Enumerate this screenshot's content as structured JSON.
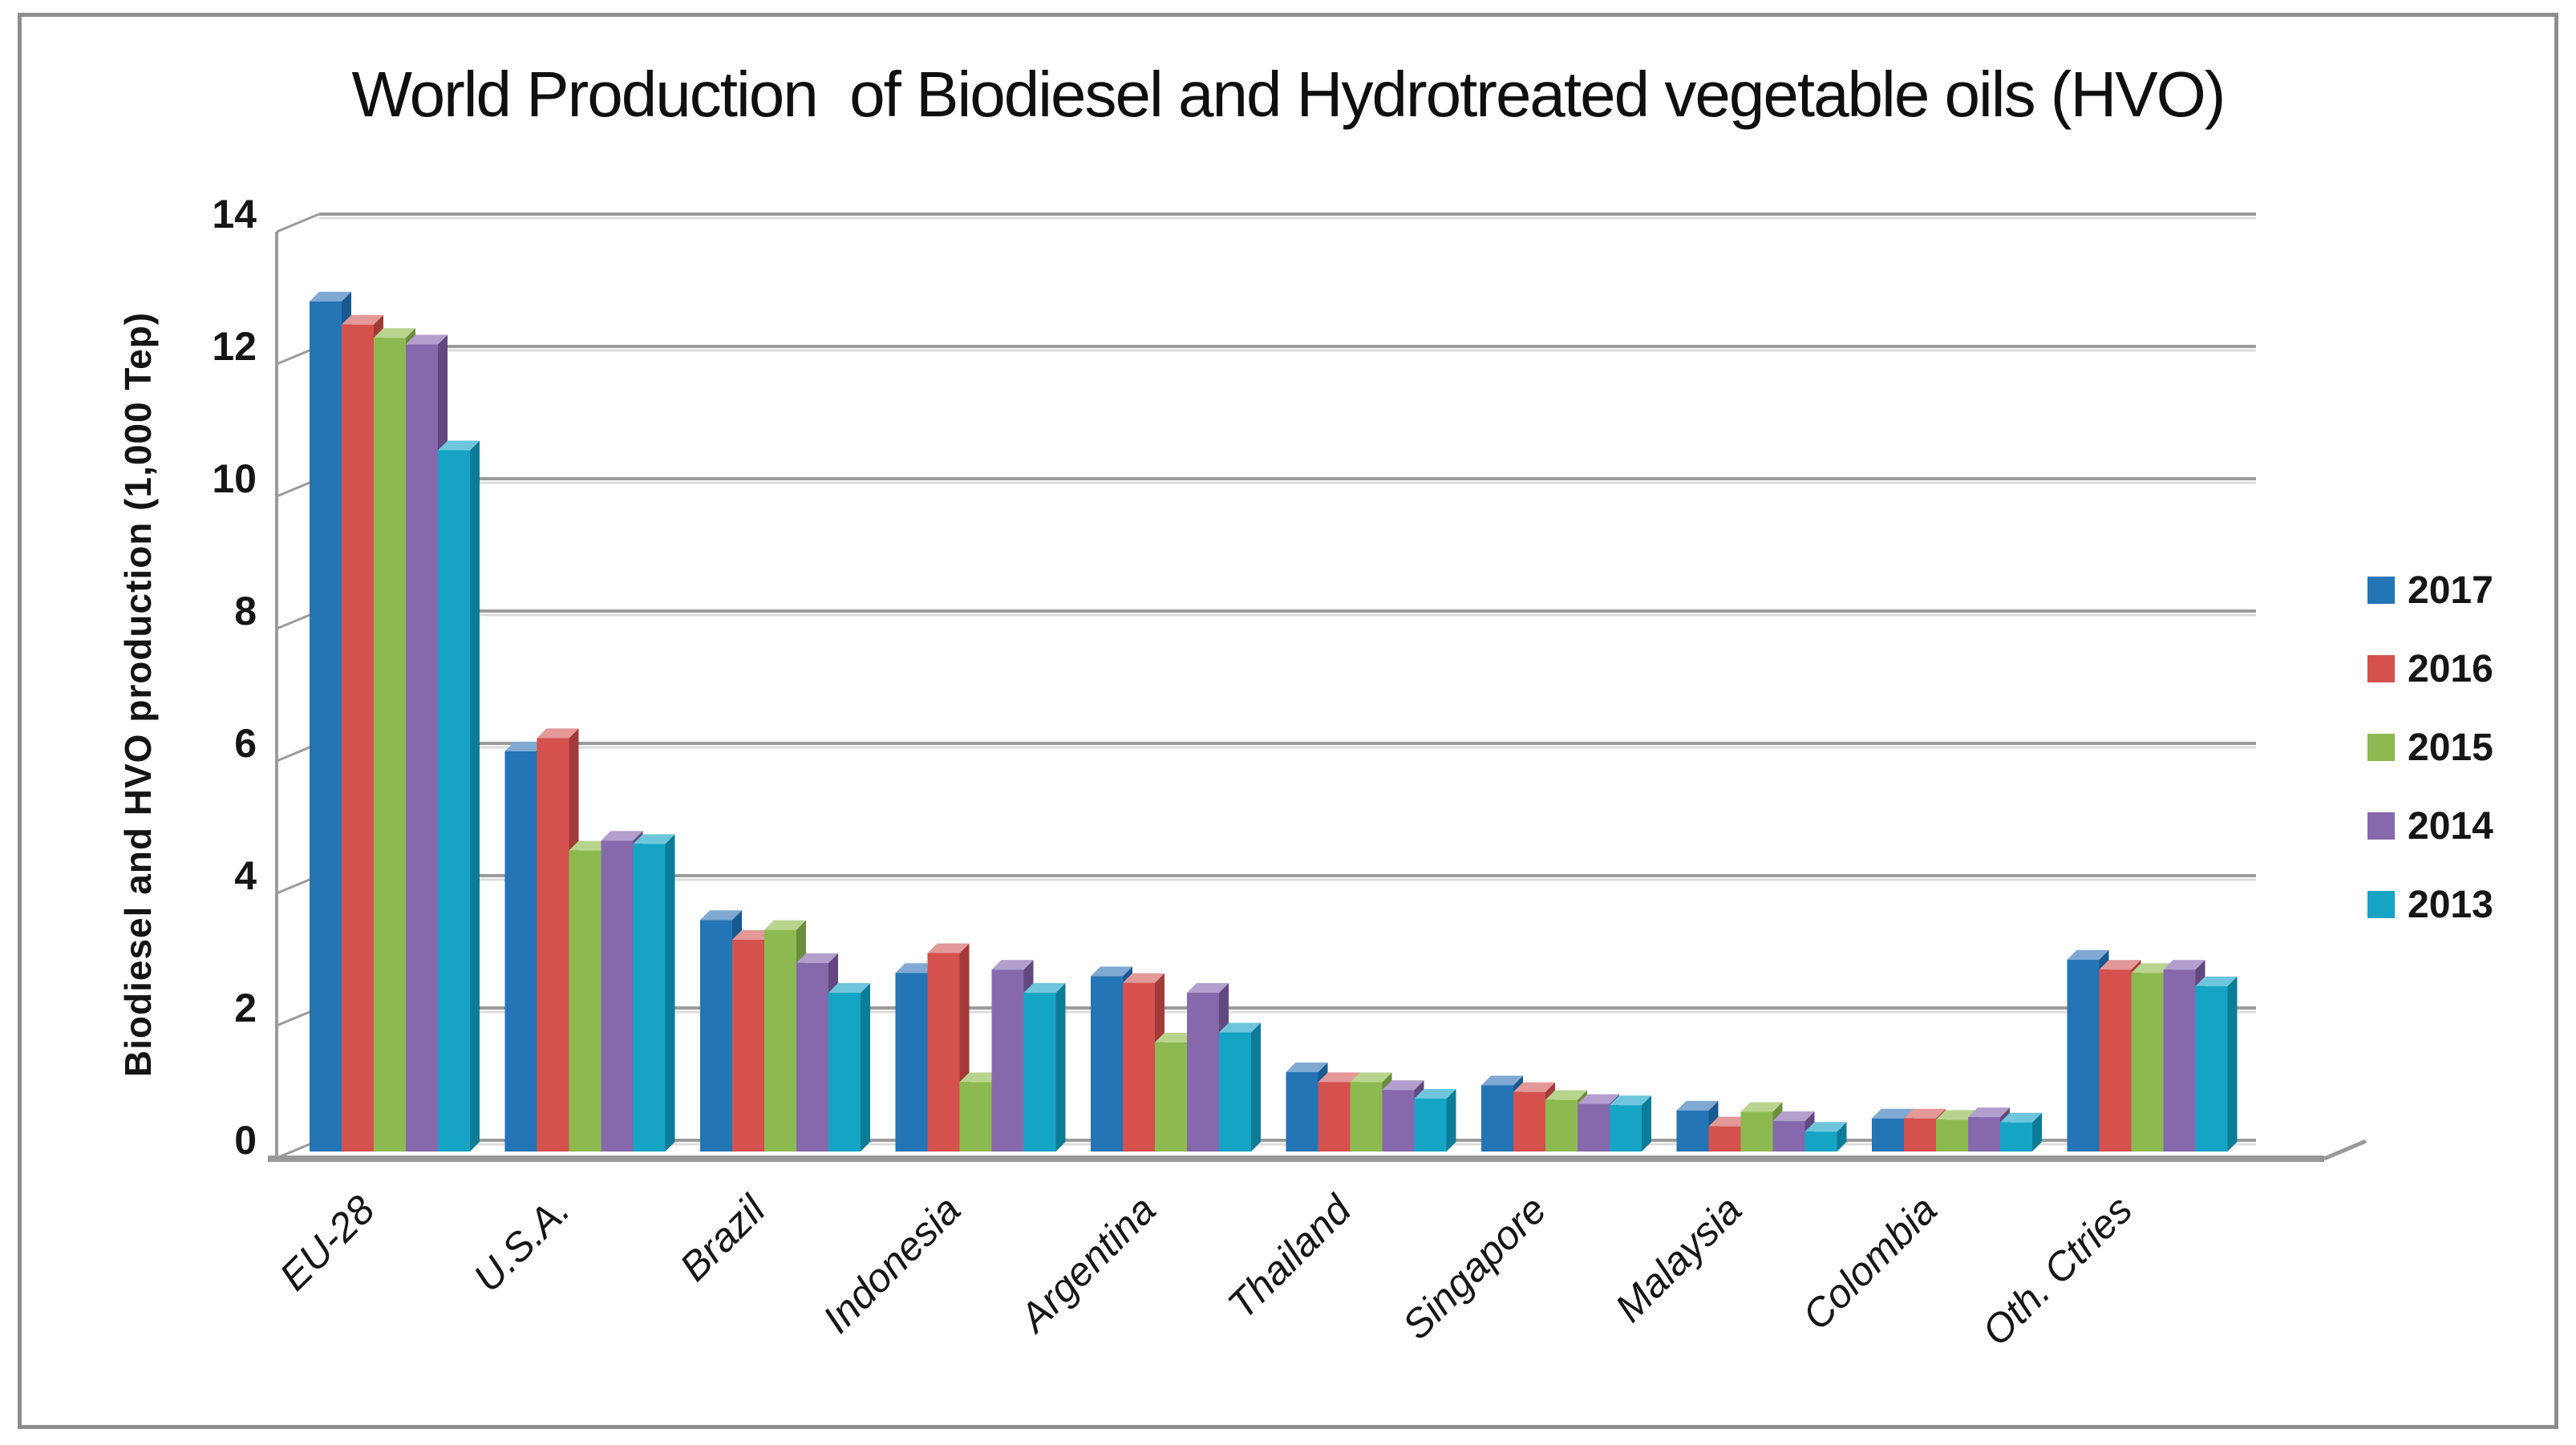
{
  "title": "World Production  of Biodiesel and Hydrotreated vegetable oils (HVO)",
  "y_axis": {
    "label": "Biodiesel and HVO production (1,000 Tep)",
    "tick_values": [
      0,
      2,
      4,
      6,
      8,
      10,
      12,
      14
    ],
    "min": 0,
    "max": 14
  },
  "legend": {
    "position": "right",
    "items": [
      "2017",
      "2016",
      "2015",
      "2014",
      "2013"
    ]
  },
  "colors": {
    "frame_border": "#8d8d8d",
    "gridline": "#9b9b9b",
    "gridline_shadow": "#dcdcdc",
    "floor": "#989898",
    "text": "#161616"
  },
  "chart_data": {
    "type": "bar",
    "style": "3d-clustered-column",
    "title": "World Production  of Biodiesel and Hydrotreated vegetable oils (HVO)",
    "xlabel": "",
    "ylabel": "Biodiesel and HVO production (1,000 Tep)",
    "ylim": [
      0,
      14
    ],
    "grid": true,
    "legend_position": "right",
    "categories": [
      "EU-28",
      "U.S.A.",
      "Brazil",
      "Indonesia",
      "Argentina",
      "Thailand",
      "Singapore",
      "Malaysia",
      "Colombia",
      "Oth. Ctries"
    ],
    "series": [
      {
        "name": "2017",
        "color": "#2375b6",
        "color_top": "#7fa9d2",
        "color_side": "#175a90",
        "values": [
          12.85,
          6.05,
          3.5,
          2.7,
          2.65,
          1.2,
          1.0,
          0.62,
          0.5,
          2.9
        ]
      },
      {
        "name": "2016",
        "color": "#d5514e",
        "color_top": "#e39997",
        "color_side": "#a23a38",
        "values": [
          12.5,
          6.25,
          3.2,
          3.0,
          2.55,
          1.05,
          0.9,
          0.38,
          0.5,
          2.75
        ]
      },
      {
        "name": "2015",
        "color": "#8cba50",
        "color_top": "#b9d48e",
        "color_side": "#6a8e3d",
        "values": [
          12.3,
          4.55,
          3.35,
          1.05,
          1.65,
          1.05,
          0.78,
          0.6,
          0.48,
          2.7
        ]
      },
      {
        "name": "2014",
        "color": "#8669ac",
        "color_top": "#b39fce",
        "color_side": "#62487f",
        "values": [
          12.2,
          4.7,
          2.85,
          2.75,
          2.4,
          0.93,
          0.72,
          0.46,
          0.52,
          2.75
        ]
      },
      {
        "name": "2013",
        "color": "#16a4c5",
        "color_top": "#6fc6dc",
        "color_side": "#0d7c97",
        "values": [
          10.6,
          4.65,
          2.4,
          2.4,
          1.8,
          0.8,
          0.7,
          0.3,
          0.44,
          2.5
        ]
      }
    ]
  }
}
